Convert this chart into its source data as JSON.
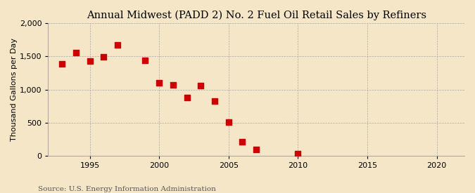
{
  "title": "Annual Midwest (PADD 2) No. 2 Fuel Oil Retail Sales by Refiners",
  "ylabel": "Thousand Gallons per Day",
  "source": "Source: U.S. Energy Information Administration",
  "background_color": "#f5e6c8",
  "scatter_color": "#cc0000",
  "years": [
    1993,
    1994,
    1995,
    1996,
    1997,
    1999,
    2000,
    2001,
    2002,
    2003,
    2004,
    2005,
    2006,
    2007,
    2010
  ],
  "values": [
    1390,
    1560,
    1430,
    1490,
    1670,
    1440,
    1100,
    1065,
    875,
    1060,
    825,
    510,
    205,
    90,
    25
  ],
  "xlim": [
    1992,
    2022
  ],
  "ylim": [
    0,
    2000
  ],
  "yticks": [
    0,
    500,
    1000,
    1500,
    2000
  ],
  "xticks": [
    1995,
    2000,
    2005,
    2010,
    2015,
    2020
  ],
  "title_fontsize": 10.5,
  "label_fontsize": 8,
  "tick_fontsize": 8,
  "source_fontsize": 7.5,
  "marker_size": 28
}
